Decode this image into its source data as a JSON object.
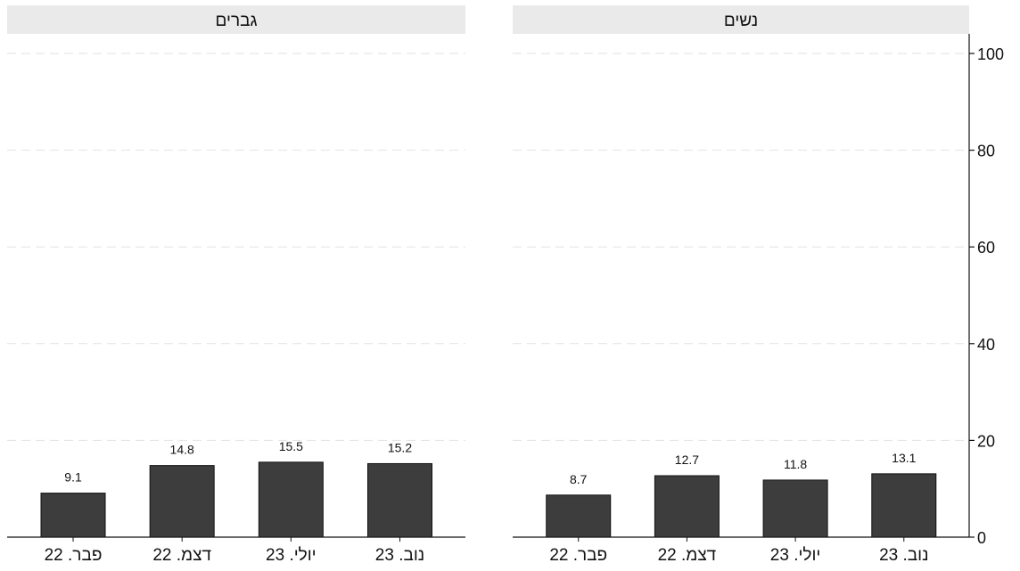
{
  "chart_data": {
    "type": "bar",
    "panels": [
      {
        "title": "גברים",
        "categories": [
          "פבר. 22",
          "דצמ. 22",
          "יולי. 23",
          "נוב. 23"
        ],
        "values": [
          9.1,
          14.8,
          15.5,
          15.2
        ],
        "value_labels": [
          "9.1",
          "14.8",
          "15.5",
          "15.2"
        ]
      },
      {
        "title": "נשים",
        "categories": [
          "פבר. 22",
          "דצמ. 22",
          "יולי. 23",
          "נוב. 23"
        ],
        "values": [
          8.7,
          12.7,
          11.8,
          13.1
        ],
        "value_labels": [
          "8.7",
          "12.7",
          "11.8",
          "13.1"
        ]
      }
    ],
    "ylim": [
      0,
      100
    ],
    "yticks": [
      0,
      20,
      40,
      60,
      80,
      100
    ],
    "ytick_labels": [
      "0",
      "20",
      "40",
      "60",
      "80",
      "100"
    ],
    "y_axis_side": "right",
    "grid": "horizontal dashed",
    "legend": "none"
  },
  "colors": {
    "bar_fill": "#3d3d3d",
    "bar_stroke": "#111111",
    "panel_header_bg": "#eaeaea",
    "grid": "#e2e2e2",
    "axis": "#111111"
  }
}
